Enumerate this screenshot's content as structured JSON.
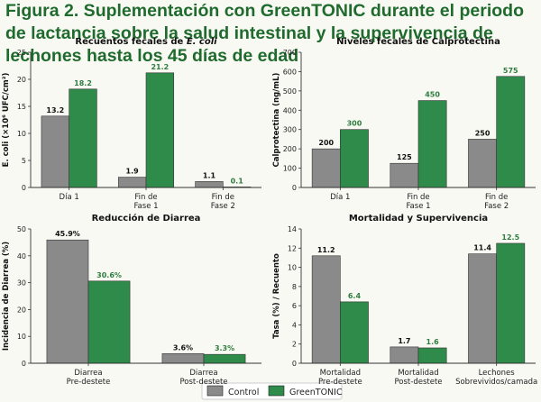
{
  "figure": {
    "title": "Figura 2. Suplementación con GreenTONIC durante el periodo de lactancia sobre la salud intestinal y la supervivencia de lechones hasta los 45 días de edad"
  },
  "legend": {
    "items": [
      "Control",
      "GreenTONIC"
    ]
  },
  "colors": {
    "control": "#8a8a8a",
    "greentonic": "#2e8b4a",
    "title": "#1f6b2e",
    "green_label": "#2e7d3e"
  },
  "chart_data": [
    {
      "type": "bar",
      "title": "Recuentos fecales de E. coli",
      "title_parts": [
        "Recuentos fecales de ",
        "E. coli"
      ],
      "ylabel": "E. coli (×10⁶ UFC/cm²)",
      "ylim": [
        0,
        25
      ],
      "yticks": [
        0,
        5,
        10,
        15,
        20,
        25
      ],
      "categories": [
        [
          "Día 1"
        ],
        [
          "Fin de",
          "Fase 1"
        ],
        [
          "Fin de",
          "Fase 2"
        ]
      ],
      "series": [
        {
          "name": "Control",
          "values": [
            13.2,
            1.9,
            1.1
          ],
          "labels": [
            "13.2",
            "1.9",
            "1.1"
          ]
        },
        {
          "name": "GreenTONIC",
          "values": [
            18.2,
            21.2,
            0.1
          ],
          "labels": [
            "18.2",
            "21.2",
            "0.1"
          ]
        }
      ]
    },
    {
      "type": "bar",
      "title": "Niveles fecales de Calprotectina",
      "ylabel": "Calprotectina (ng/mL)",
      "ylim": [
        0,
        700
      ],
      "yticks": [
        0,
        100,
        200,
        300,
        400,
        500,
        600,
        700
      ],
      "categories": [
        [
          "Día 1"
        ],
        [
          "Fin de",
          "Fase 1"
        ],
        [
          "Fin de",
          "Fase 2"
        ]
      ],
      "series": [
        {
          "name": "Control",
          "values": [
            200,
            125,
            250
          ],
          "labels": [
            "200",
            "125",
            "250"
          ]
        },
        {
          "name": "GreenTONIC",
          "values": [
            300,
            450,
            575
          ],
          "labels": [
            "300",
            "450",
            "575"
          ]
        }
      ]
    },
    {
      "type": "bar",
      "title": "Reducción de Diarrea",
      "ylabel": "Incidencia de Diarrea (%)",
      "ylim": [
        0,
        50
      ],
      "yticks": [
        0,
        10,
        20,
        30,
        40,
        50
      ],
      "categories": [
        [
          "Diarrea",
          "Pre-destete"
        ],
        [
          "Diarrea",
          "Post-destete"
        ]
      ],
      "series": [
        {
          "name": "Control",
          "values": [
            45.9,
            3.6
          ],
          "labels": [
            "45.9%",
            "3.6%"
          ]
        },
        {
          "name": "GreenTONIC",
          "values": [
            30.6,
            3.3
          ],
          "labels": [
            "30.6%",
            "3.3%"
          ]
        }
      ]
    },
    {
      "type": "bar",
      "title": "Mortalidad y Supervivencia",
      "ylabel": "Tasa (%) / Recuento",
      "ylim": [
        0,
        14
      ],
      "yticks": [
        0,
        2,
        4,
        6,
        8,
        10,
        12,
        14
      ],
      "categories": [
        [
          "Mortalidad",
          "Pre-destete"
        ],
        [
          "Mortalidad",
          "Post-destete"
        ],
        [
          "Lechones",
          "Sobrevividos/camada"
        ]
      ],
      "series": [
        {
          "name": "Control",
          "values": [
            11.2,
            1.7,
            11.4
          ],
          "labels": [
            "11.2",
            "1.7",
            "11.4"
          ]
        },
        {
          "name": "GreenTONIC",
          "values": [
            6.4,
            1.6,
            12.5
          ],
          "labels": [
            "6.4",
            "1.6",
            "12.5"
          ]
        }
      ]
    }
  ]
}
